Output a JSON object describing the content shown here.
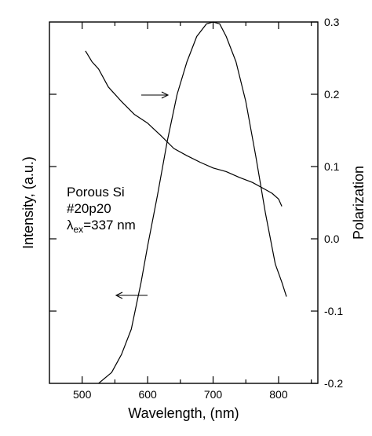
{
  "chart_data": {
    "type": "line",
    "title": "",
    "xlabel": "Wavelength, (nm)",
    "ylabel_left": "Intensity, (a.u.)",
    "ylabel_right": "Polarization",
    "xlim": [
      450,
      860
    ],
    "xticks": [
      500,
      600,
      700,
      800
    ],
    "ylim_left": [
      0,
      1
    ],
    "ylim_right": [
      -0.2,
      0.3
    ],
    "yticks_right": [
      0.3,
      0.2,
      0.1,
      0.0,
      -0.1,
      -0.2
    ],
    "ytick_labels_right": [
      "0.3",
      "0.2",
      "0.1",
      "0.0",
      "-0.1",
      "-0.2"
    ],
    "grid": false,
    "series": [
      {
        "axis": "left",
        "x": [
          525,
          545,
          560,
          575,
          590,
          600,
          615,
          630,
          645,
          660,
          675,
          690,
          700,
          710,
          720,
          735,
          750,
          765,
          780,
          795,
          805,
          812
        ],
        "y": [
          0,
          0.03,
          0.08,
          0.15,
          0.28,
          0.38,
          0.52,
          0.67,
          0.8,
          0.89,
          0.96,
          0.995,
          1.0,
          0.995,
          0.96,
          0.89,
          0.78,
          0.63,
          0.47,
          0.33,
          0.28,
          0.24
        ]
      },
      {
        "axis": "right",
        "x": [
          505,
          515,
          525,
          540,
          560,
          580,
          600,
          620,
          640,
          660,
          680,
          700,
          720,
          740,
          760,
          780,
          790,
          800,
          805
        ],
        "y": [
          0.26,
          0.245,
          0.235,
          0.21,
          0.19,
          0.172,
          0.16,
          0.143,
          0.125,
          0.115,
          0.106,
          0.098,
          0.093,
          0.085,
          0.078,
          0.068,
          0.063,
          0.055,
          0.045
        ]
      }
    ],
    "annotations": {
      "line1": "Porous Si",
      "line2": "#20p20",
      "lambda": "λ",
      "subscript": "ex",
      "value": "=337 nm"
    },
    "arrows": [
      {
        "points_to": "right"
      },
      {
        "points_to": "left"
      }
    ]
  }
}
